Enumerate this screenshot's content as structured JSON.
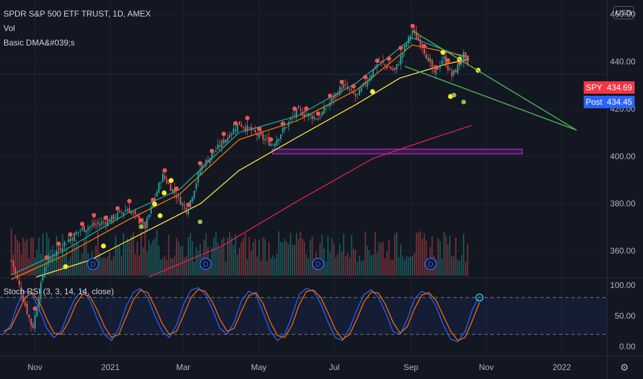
{
  "header": {
    "title": "SPDR S&P 500 ETF TRUST, 1D, AMEX",
    "indicator_vol": "Vol",
    "indicator_dma": "Basic DMA&#039;s"
  },
  "currency_button": "USD",
  "price_tags": [
    {
      "name": "SPY",
      "value": "434.69",
      "color": "#f23645"
    },
    {
      "name": "Post",
      "value": "434.45",
      "color": "#2962ff"
    }
  ],
  "rsi_label": "Stoch RSI (3, 3, 14, 14, close)",
  "colors": {
    "background": "#131722",
    "up": "#26a69a",
    "down": "#ef5350",
    "ma_fast": "#26a69a",
    "ma_mid": "#f57c00",
    "ma_slow": "#ffeb3b",
    "ma_200": "#e91e63",
    "trendline": "#4caf50",
    "zone": "#9c27b0",
    "stoch_k": "#2962ff",
    "stoch_d": "#ff6d00"
  },
  "chart_data": [
    {
      "type": "candlestick",
      "title": "SPDR S&P 500 ETF TRUST, 1D, AMEX",
      "y_axis_ticks": [
        "460.00",
        "440.00",
        "420.00",
        "400.00",
        "380.00",
        "360.00"
      ],
      "ylim": [
        349,
        466
      ],
      "x_axis_labels": [
        "Nov",
        "2021",
        "Mar",
        "May",
        "Jul",
        "Sep",
        "Nov",
        "2022"
      ],
      "last_price": 434.69,
      "post_market_price": 434.45,
      "price_path": [
        [
          "2020-10-13",
          356
        ],
        [
          "2020-10-30",
          327
        ],
        [
          "2020-11-09",
          354
        ],
        [
          "2020-11-24",
          363
        ],
        [
          "2020-12-08",
          369
        ],
        [
          "2020-12-31",
          373
        ],
        [
          "2021-01-15",
          378
        ],
        [
          "2021-01-29",
          370
        ],
        [
          "2021-02-12",
          392
        ],
        [
          "2021-03-04",
          377
        ],
        [
          "2021-03-15",
          395
        ],
        [
          "2021-04-15",
          414
        ],
        [
          "2021-05-12",
          405
        ],
        [
          "2021-06-01",
          419
        ],
        [
          "2021-06-18",
          416
        ],
        [
          "2021-07-08",
          430
        ],
        [
          "2021-07-19",
          425
        ],
        [
          "2021-08-06",
          440
        ],
        [
          "2021-08-19",
          436
        ],
        [
          "2021-09-02",
          453
        ],
        [
          "2021-09-10",
          447
        ],
        [
          "2021-09-20",
          434
        ],
        [
          "2021-09-27",
          442
        ],
        [
          "2021-10-04",
          434
        ],
        [
          "2021-10-08",
          437
        ],
        [
          "2021-10-14",
          443
        ],
        [
          "2021-10-18",
          435
        ]
      ],
      "moving_averages": [
        {
          "name": "fast",
          "points": [
            [
              "2020-10-13",
              350
            ],
            [
              "2020-11-24",
              360
            ],
            [
              "2021-01-15",
              376
            ],
            [
              "2021-02-26",
              386
            ],
            [
              "2021-04-15",
              410
            ],
            [
              "2021-06-01",
              417
            ],
            [
              "2021-07-19",
              431
            ],
            [
              "2021-09-02",
              450
            ],
            [
              "2021-10-18",
              441
            ]
          ]
        },
        {
          "name": "mid",
          "points": [
            [
              "2020-10-13",
              348
            ],
            [
              "2020-11-24",
              358
            ],
            [
              "2021-01-15",
              373
            ],
            [
              "2021-02-26",
              384
            ],
            [
              "2021-04-15",
              407
            ],
            [
              "2021-06-01",
              415
            ],
            [
              "2021-07-19",
              428
            ],
            [
              "2021-09-02",
              447
            ],
            [
              "2021-10-18",
              442
            ]
          ]
        },
        {
          "name": "slow",
          "points": [
            [
              "2020-11-02",
              349
            ],
            [
              "2020-12-15",
              356
            ],
            [
              "2021-01-29",
              368
            ],
            [
              "2021-03-15",
              380
            ],
            [
              "2021-04-15",
              394
            ],
            [
              "2021-06-01",
              408
            ],
            [
              "2021-07-19",
              422
            ],
            [
              "2021-08-23",
              433
            ],
            [
              "2021-09-30",
              439
            ],
            [
              "2021-10-18",
              441
            ]
          ]
        },
        {
          "name": "200",
          "points": [
            [
              "2021-02-01",
              349
            ],
            [
              "2021-04-01",
              362
            ],
            [
              "2021-06-01",
              381
            ],
            [
              "2021-08-01",
              399
            ],
            [
              "2021-09-15",
              407
            ],
            [
              "2021-10-20",
              413
            ]
          ]
        }
      ],
      "trendlines": [
        {
          "from": [
            "2021-09-02",
            453
          ],
          "to": [
            "2022-01-13",
            411
          ]
        },
        {
          "from": [
            "2021-08-27",
            438
          ],
          "to": [
            "2022-01-13",
            411
          ]
        }
      ],
      "zone": {
        "from": "2021-05-12",
        "to": "2021-11-30",
        "low": 401.0,
        "high": 403.0
      },
      "dividend_markers": [
        "2020-12-18",
        "2021-03-19",
        "2021-06-18",
        "2021-09-17"
      ]
    },
    {
      "type": "line",
      "title": "Stoch RSI (3, 3, 14, 14, close)",
      "y_axis_ticks": [
        "100.00",
        "50.00",
        "0.00"
      ],
      "ylim": [
        -10,
        110
      ],
      "levels": [
        80,
        20
      ],
      "series": [
        {
          "name": "K",
          "values": [
            20,
            35,
            70,
            90,
            85,
            60,
            30,
            15,
            25,
            55,
            80,
            92,
            75,
            45,
            20,
            10,
            30,
            65,
            88,
            95,
            80,
            50,
            25,
            15,
            35,
            70,
            92,
            96,
            85,
            60,
            30,
            20,
            40,
            75,
            90,
            85,
            55,
            25,
            10,
            20,
            50,
            85,
            95,
            90,
            70,
            40,
            15,
            10,
            30,
            60,
            85,
            93,
            80,
            55,
            25,
            20,
            45,
            78,
            90,
            85,
            65,
            35,
            12,
            8,
            25,
            60,
            82
          ]
        },
        {
          "name": "D",
          "values": [
            25,
            30,
            55,
            80,
            88,
            72,
            45,
            22,
            20,
            40,
            68,
            86,
            82,
            60,
            33,
            15,
            20,
            48,
            76,
            92,
            88,
            65,
            38,
            20,
            25,
            52,
            80,
            93,
            90,
            72,
            45,
            25,
            30,
            58,
            83,
            88,
            70,
            40,
            18,
            15,
            35,
            68,
            90,
            92,
            80,
            55,
            28,
            12,
            20,
            45,
            73,
            89,
            87,
            68,
            40,
            22,
            33,
            62,
            84,
            88,
            75,
            50,
            25,
            10,
            15,
            42,
            72
          ]
        }
      ]
    }
  ]
}
